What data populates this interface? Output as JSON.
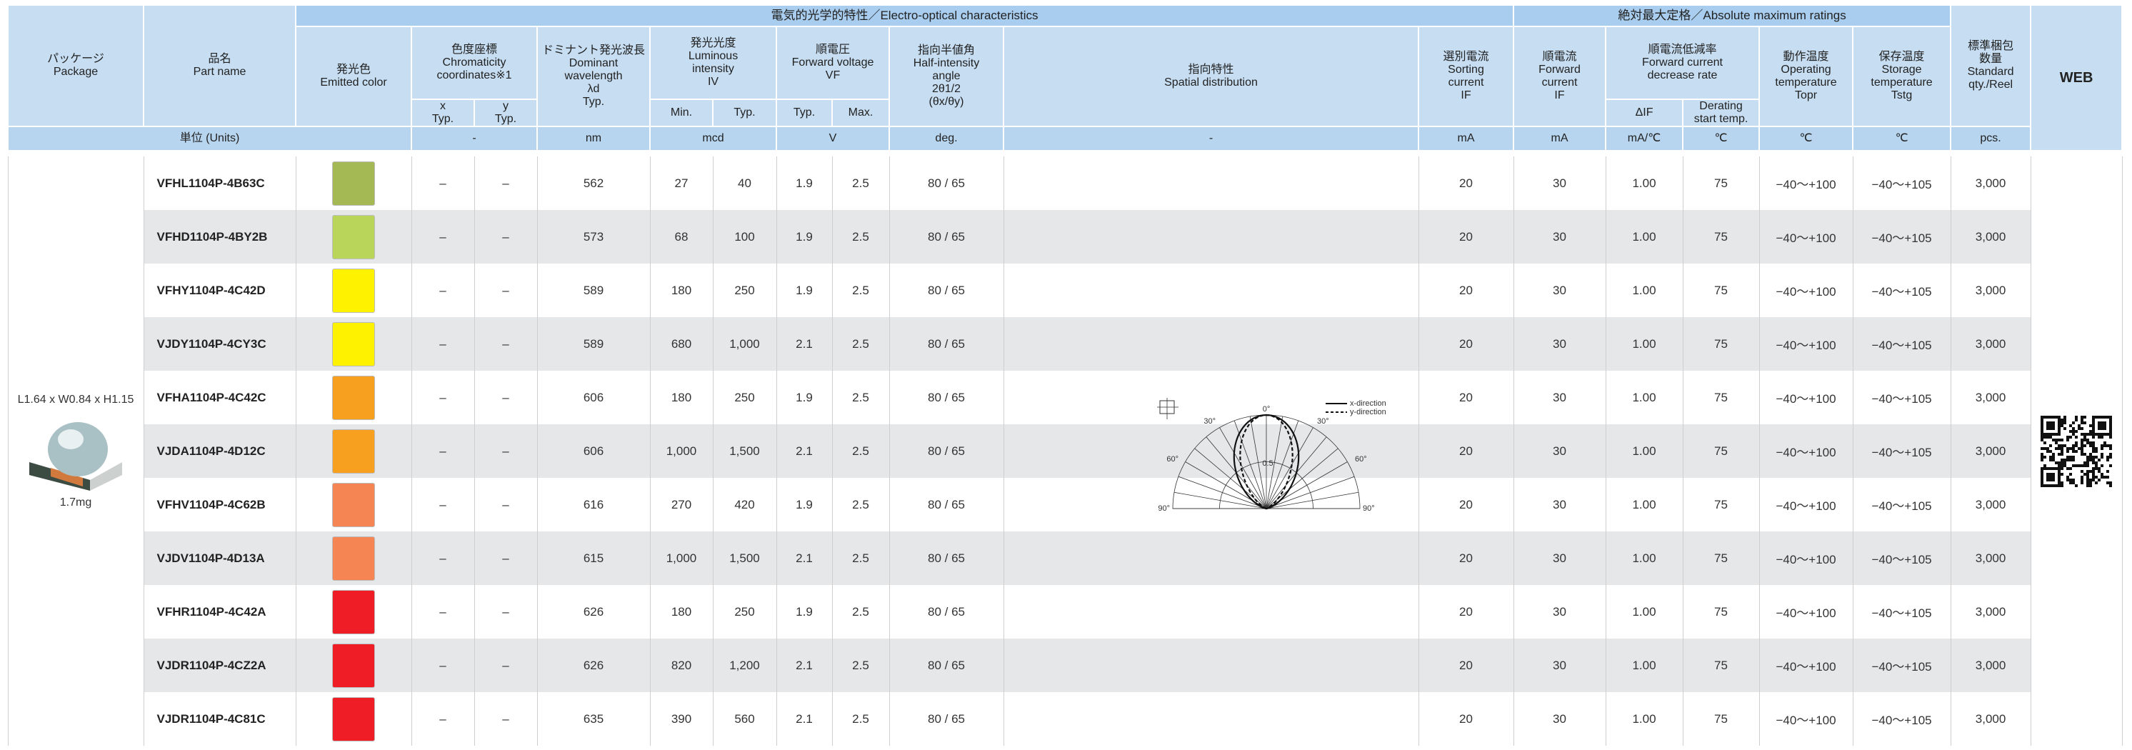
{
  "header": {
    "package": [
      "パッケージ",
      "Package"
    ],
    "part_name": [
      "品名",
      "Part name"
    ],
    "optical_group": "電気的光学的特性／Electro-optical characteristics",
    "absolute_group": "絶対最大定格／Absolute maximum ratings",
    "emitted_color": [
      "発光色",
      "Emitted color"
    ],
    "chromaticity": [
      "色度座標",
      "Chromaticity",
      "coordinates※1"
    ],
    "chromaticity_sub": [
      [
        "x",
        "Typ."
      ],
      [
        "y",
        "Typ."
      ]
    ],
    "dominant_wavelength": [
      "ドミナント発光波長",
      "Dominant",
      "wavelength",
      "λd",
      "Typ."
    ],
    "luminous_intensity": [
      "発光光度",
      "Luminous",
      "intensity",
      "IV"
    ],
    "luminous_sub": [
      "Min.",
      "Typ."
    ],
    "forward_voltage": [
      "順電圧",
      "Forward voltage",
      "VF"
    ],
    "forward_voltage_sub": [
      "Typ.",
      "Max."
    ],
    "half_intensity_angle": [
      "指向半値角",
      "Half-intensity",
      "angle",
      "2θ1/2",
      "(θx/θy)"
    ],
    "spatial_distribution": [
      "指向特性",
      "Spatial distribution"
    ],
    "sorting_current": [
      "選別電流",
      "Sorting",
      "current",
      "IF"
    ],
    "forward_current": [
      "順電流",
      "Forward",
      "current",
      "IF"
    ],
    "decrease_rate": [
      "順電流低減率",
      "Forward current",
      "decrease rate"
    ],
    "decrease_rate_sub": [
      [
        "ΔIF"
      ],
      [
        "Derating",
        "start temp."
      ]
    ],
    "operating_temperature": [
      "動作温度",
      "Operating",
      "temperature",
      "Topr"
    ],
    "storage_temperature": [
      "保存温度",
      "Storage",
      "temperature",
      "Tstg"
    ],
    "standard_qty": [
      "標準梱包",
      "数量",
      "Standard",
      "qty./Reel"
    ],
    "web": "WEB"
  },
  "units": {
    "label": "単位 (Units)",
    "values": [
      "-",
      "nm",
      "mcd",
      "V",
      "deg.",
      "-",
      "mA",
      "mA",
      "mA/℃",
      "℃",
      "℃",
      "℃",
      "pcs."
    ]
  },
  "package": {
    "dimensions": "L1.64 x W0.84 x H1.15",
    "weight": "1.7mg"
  },
  "spatial_diagram": {
    "angle_labels": [
      "0°",
      "30°",
      "30°",
      "60°",
      "60°",
      "90°",
      "90°"
    ],
    "scale_label": "0.5",
    "legend": [
      "x-direction",
      "y-direction"
    ]
  },
  "table": {
    "rows": [
      {
        "part_name": "VFHL1104P-4B63C",
        "color": "#a4b954",
        "cells": [
          "–",
          "–",
          "562",
          "27",
          "40",
          "1.9",
          "2.5",
          "80 / 65",
          "20",
          "30",
          "1.00",
          "75",
          "−40〜+100",
          "−40〜+105",
          "3,000"
        ]
      },
      {
        "part_name": "VFHD1104P-4BY2B",
        "color": "#b9d65b",
        "cells": [
          "–",
          "–",
          "573",
          "68",
          "100",
          "1.9",
          "2.5",
          "80 / 65",
          "20",
          "30",
          "1.00",
          "75",
          "−40〜+100",
          "−40〜+105",
          "3,000"
        ]
      },
      {
        "part_name": "VFHY1104P-4C42D",
        "color": "#fff200",
        "cells": [
          "–",
          "–",
          "589",
          "180",
          "250",
          "1.9",
          "2.5",
          "80 / 65",
          "20",
          "30",
          "1.00",
          "75",
          "−40〜+100",
          "−40〜+105",
          "3,000"
        ]
      },
      {
        "part_name": "VJDY1104P-4CY3C",
        "color": "#fff200",
        "cells": [
          "–",
          "–",
          "589",
          "680",
          "1,000",
          "2.1",
          "2.5",
          "80 / 65",
          "20",
          "30",
          "1.00",
          "75",
          "−40〜+100",
          "−40〜+105",
          "3,000"
        ]
      },
      {
        "part_name": "VFHA1104P-4C42C",
        "color": "#f7a01f",
        "cells": [
          "–",
          "–",
          "606",
          "180",
          "250",
          "1.9",
          "2.5",
          "80 / 65",
          "20",
          "30",
          "1.00",
          "75",
          "−40〜+100",
          "−40〜+105",
          "3,000"
        ]
      },
      {
        "part_name": "VJDA1104P-4D12C",
        "color": "#f7a01f",
        "cells": [
          "–",
          "–",
          "606",
          "1,000",
          "1,500",
          "2.1",
          "2.5",
          "80 / 65",
          "20",
          "30",
          "1.00",
          "75",
          "−40〜+100",
          "−40〜+105",
          "3,000"
        ]
      },
      {
        "part_name": "VFHV1104P-4C62B",
        "color": "#f58653",
        "cells": [
          "–",
          "–",
          "616",
          "270",
          "420",
          "1.9",
          "2.5",
          "80 / 65",
          "20",
          "30",
          "1.00",
          "75",
          "−40〜+100",
          "−40〜+105",
          "3,000"
        ]
      },
      {
        "part_name": "VJDV1104P-4D13A",
        "color": "#f58653",
        "cells": [
          "–",
          "–",
          "615",
          "1,000",
          "1,500",
          "2.1",
          "2.5",
          "80 / 65",
          "20",
          "30",
          "1.00",
          "75",
          "−40〜+100",
          "−40〜+105",
          "3,000"
        ]
      },
      {
        "part_name": "VFHR1104P-4C42A",
        "color": "#ee1d26",
        "cells": [
          "–",
          "–",
          "626",
          "180",
          "250",
          "1.9",
          "2.5",
          "80 / 65",
          "20",
          "30",
          "1.00",
          "75",
          "−40〜+100",
          "−40〜+105",
          "3,000"
        ]
      },
      {
        "part_name": "VJDR1104P-4CZ2A",
        "color": "#ee1d26",
        "cells": [
          "–",
          "–",
          "626",
          "820",
          "1,200",
          "2.1",
          "2.5",
          "80 / 65",
          "20",
          "30",
          "1.00",
          "75",
          "−40〜+100",
          "−40〜+105",
          "3,000"
        ]
      },
      {
        "part_name": "VJDR1104P-4C81C",
        "color": "#ee1d26",
        "cells": [
          "–",
          "–",
          "635",
          "390",
          "560",
          "2.1",
          "2.5",
          "80 / 65",
          "20",
          "30",
          "1.00",
          "75",
          "−40〜+100",
          "−40〜+105",
          "3,000"
        ]
      }
    ]
  }
}
